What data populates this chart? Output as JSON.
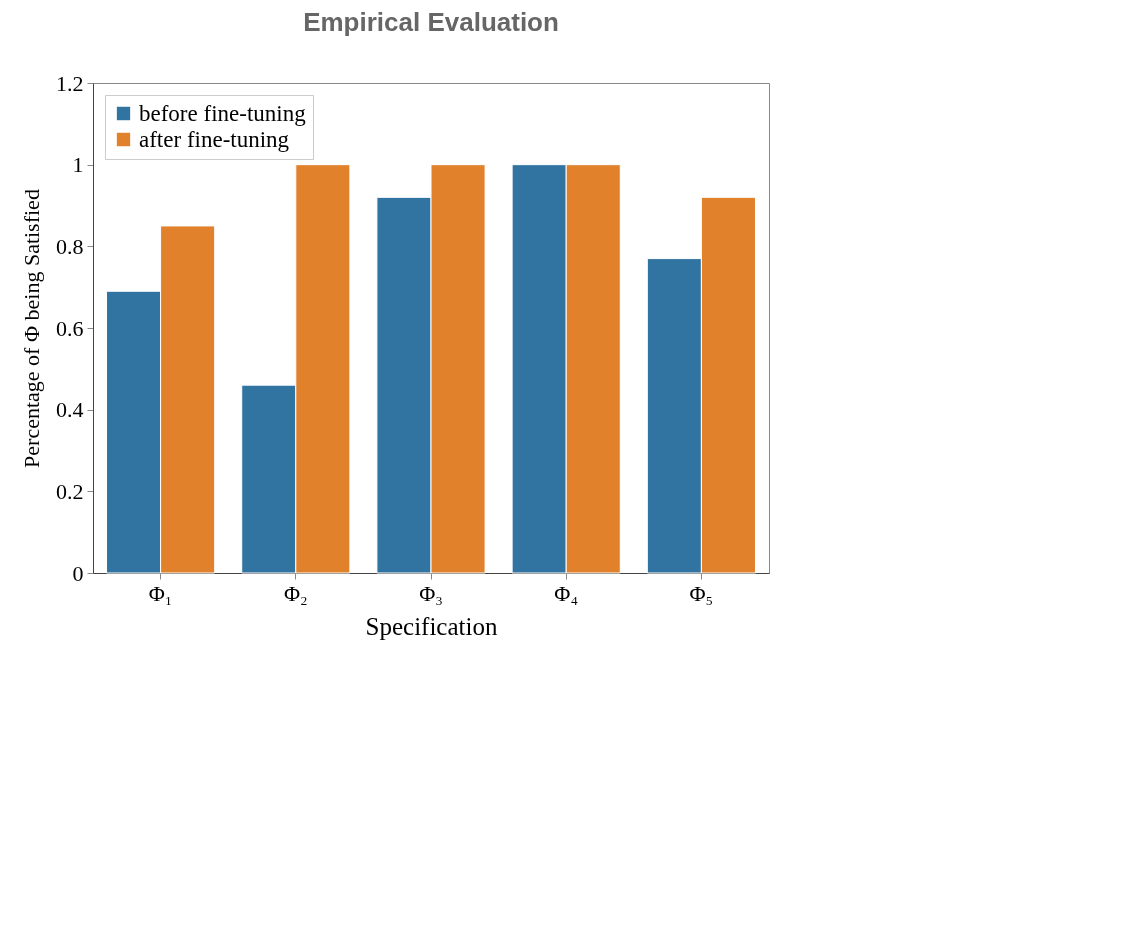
{
  "chart_data": {
    "type": "bar",
    "title": "Empirical Evaluation",
    "xlabel": "Specification",
    "ylabel": "Percentage of Φ being Satisfied",
    "categories": [
      "Φ₁",
      "Φ₂",
      "Φ₃",
      "Φ₄",
      "Φ₅"
    ],
    "series": [
      {
        "name": "before fine-tuning",
        "color": "#3274a1",
        "values": [
          0.69,
          0.46,
          0.92,
          1,
          0.77
        ]
      },
      {
        "name": "after fine-tuning",
        "color": "#e1812c",
        "values": [
          0.85,
          1,
          1,
          1,
          0.92
        ]
      }
    ],
    "ylim": [
      0,
      1.2
    ],
    "yticks": [
      0,
      0.2,
      0.4,
      0.6,
      0.8,
      1,
      1.2
    ],
    "grid": false,
    "legend": "top left"
  }
}
